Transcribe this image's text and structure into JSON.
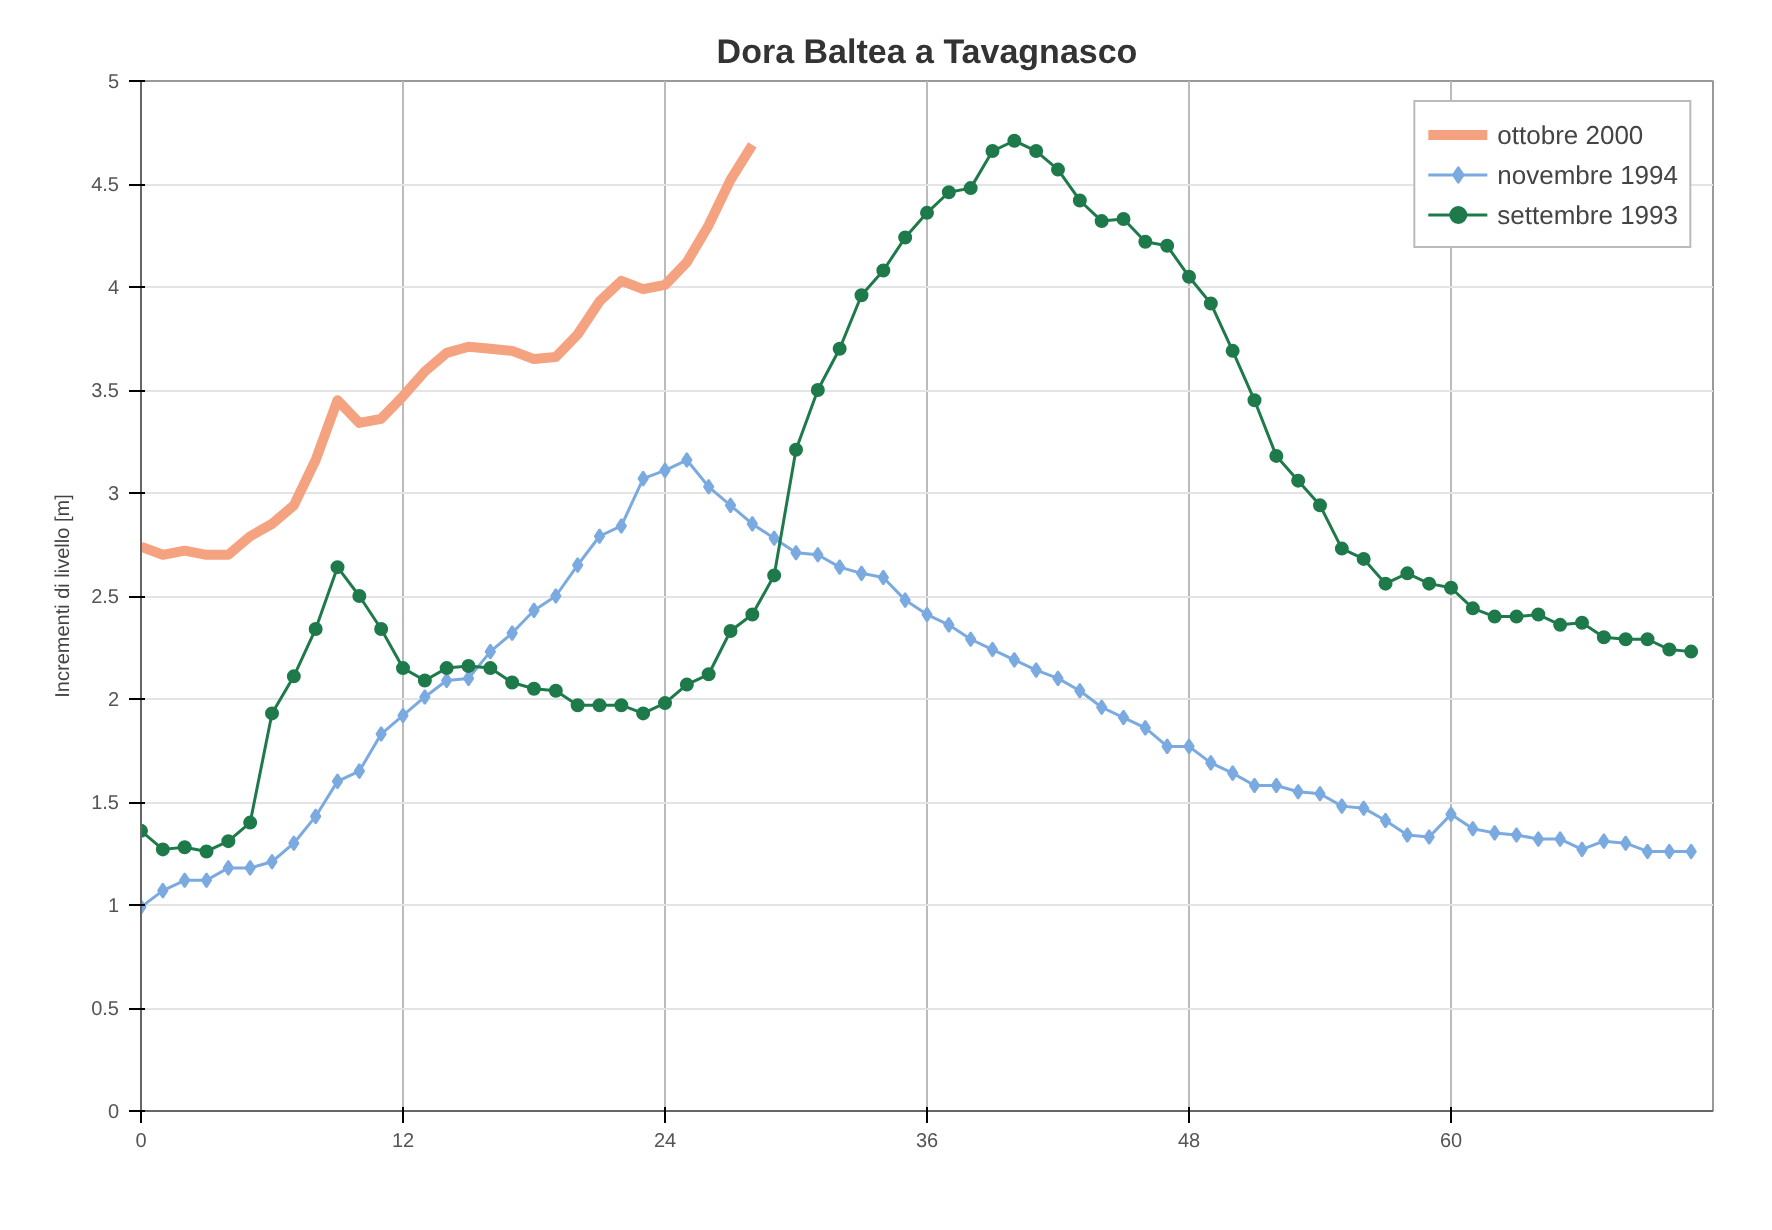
{
  "chart_data": {
    "type": "line",
    "title": "Dora Baltea a Tavagnasco",
    "ylabel": "Incrementi di livello [m]",
    "xlim": [
      0,
      72
    ],
    "xticks": [
      0,
      12,
      24,
      36,
      48,
      60
    ],
    "ylim": [
      0,
      5
    ],
    "yticks": [
      0,
      0.5,
      1,
      1.5,
      2,
      2.5,
      3,
      3.5,
      4,
      4.5,
      5
    ],
    "grid": true,
    "legend": "top right",
    "series": [
      {
        "name": "ottobre 2000",
        "color": "#f4a27f",
        "marker": "none",
        "x": [
          0,
          1,
          2,
          3,
          4,
          5,
          6,
          7,
          8,
          9,
          10,
          11,
          12,
          13,
          14,
          15,
          16,
          17,
          18,
          19,
          20,
          21,
          22,
          23,
          24,
          25,
          26,
          27,
          28
        ],
        "values": [
          2.74,
          2.7,
          2.72,
          2.7,
          2.7,
          2.79,
          2.85,
          2.94,
          3.16,
          3.45,
          3.34,
          3.36,
          3.47,
          3.59,
          3.68,
          3.71,
          3.7,
          3.69,
          3.65,
          3.66,
          3.77,
          3.93,
          4.03,
          3.99,
          4.01,
          4.12,
          4.3,
          4.52,
          4.69
        ]
      },
      {
        "name": "novembre 1994",
        "color": "#7aaae0",
        "marker": "diamond",
        "x": [
          0,
          1,
          2,
          3,
          4,
          5,
          6,
          7,
          8,
          9,
          10,
          11,
          12,
          13,
          14,
          15,
          16,
          17,
          18,
          19,
          20,
          21,
          22,
          23,
          24,
          25,
          26,
          27,
          28,
          29,
          30,
          31,
          32,
          33,
          34,
          35,
          36,
          37,
          38,
          39,
          40,
          41,
          42,
          43,
          44,
          45,
          46,
          47,
          48,
          49,
          50,
          51,
          52,
          53,
          54,
          55,
          56,
          57,
          58,
          59,
          60,
          61,
          62,
          63,
          64,
          65,
          66,
          67,
          68,
          69,
          70,
          71
        ],
        "values": [
          0.99,
          1.07,
          1.12,
          1.12,
          1.18,
          1.18,
          1.21,
          1.3,
          1.43,
          1.6,
          1.65,
          1.83,
          1.92,
          2.01,
          2.09,
          2.1,
          2.23,
          2.32,
          2.43,
          2.5,
          2.65,
          2.79,
          2.84,
          3.07,
          3.11,
          3.16,
          3.03,
          2.94,
          2.85,
          2.78,
          2.71,
          2.7,
          2.64,
          2.61,
          2.59,
          2.48,
          2.41,
          2.36,
          2.29,
          2.24,
          2.19,
          2.14,
          2.1,
          2.04,
          1.96,
          1.91,
          1.86,
          1.77,
          1.77,
          1.69,
          1.64,
          1.58,
          1.58,
          1.55,
          1.54,
          1.48,
          1.47,
          1.41,
          1.34,
          1.33,
          1.44,
          1.37,
          1.35,
          1.34,
          1.32,
          1.32,
          1.27,
          1.31,
          1.3,
          1.26,
          1.26,
          1.26
        ]
      },
      {
        "name": "settembre 1993",
        "color": "#1e7a4a",
        "marker": "circle",
        "x": [
          0,
          1,
          2,
          3,
          4,
          5,
          6,
          7,
          8,
          9,
          10,
          11,
          12,
          13,
          14,
          15,
          16,
          17,
          18,
          19,
          20,
          21,
          22,
          23,
          24,
          25,
          26,
          27,
          28,
          29,
          30,
          31,
          32,
          33,
          34,
          35,
          36,
          37,
          38,
          39,
          40,
          41,
          42,
          43,
          44,
          45,
          46,
          47,
          48,
          49,
          50,
          51,
          52,
          53,
          54,
          55,
          56,
          57,
          58,
          59,
          60,
          61,
          62,
          63,
          64,
          65,
          66,
          67,
          68,
          69,
          70,
          71
        ],
        "values": [
          1.36,
          1.27,
          1.28,
          1.26,
          1.31,
          1.4,
          1.93,
          2.11,
          2.34,
          2.64,
          2.5,
          2.34,
          2.15,
          2.09,
          2.15,
          2.16,
          2.15,
          2.08,
          2.05,
          2.04,
          1.97,
          1.97,
          1.97,
          1.93,
          1.98,
          2.07,
          2.12,
          2.33,
          2.41,
          2.6,
          3.21,
          3.5,
          3.7,
          3.96,
          4.08,
          4.24,
          4.36,
          4.46,
          4.48,
          4.66,
          4.71,
          4.66,
          4.57,
          4.42,
          4.32,
          4.33,
          4.22,
          4.2,
          4.05,
          3.92,
          3.69,
          3.45,
          3.18,
          3.06,
          2.94,
          2.73,
          2.68,
          2.56,
          2.61,
          2.56,
          2.54,
          2.44,
          2.4,
          2.4,
          2.41,
          2.36,
          2.37,
          2.3,
          2.29,
          2.29,
          2.24,
          2.23
        ]
      }
    ]
  }
}
